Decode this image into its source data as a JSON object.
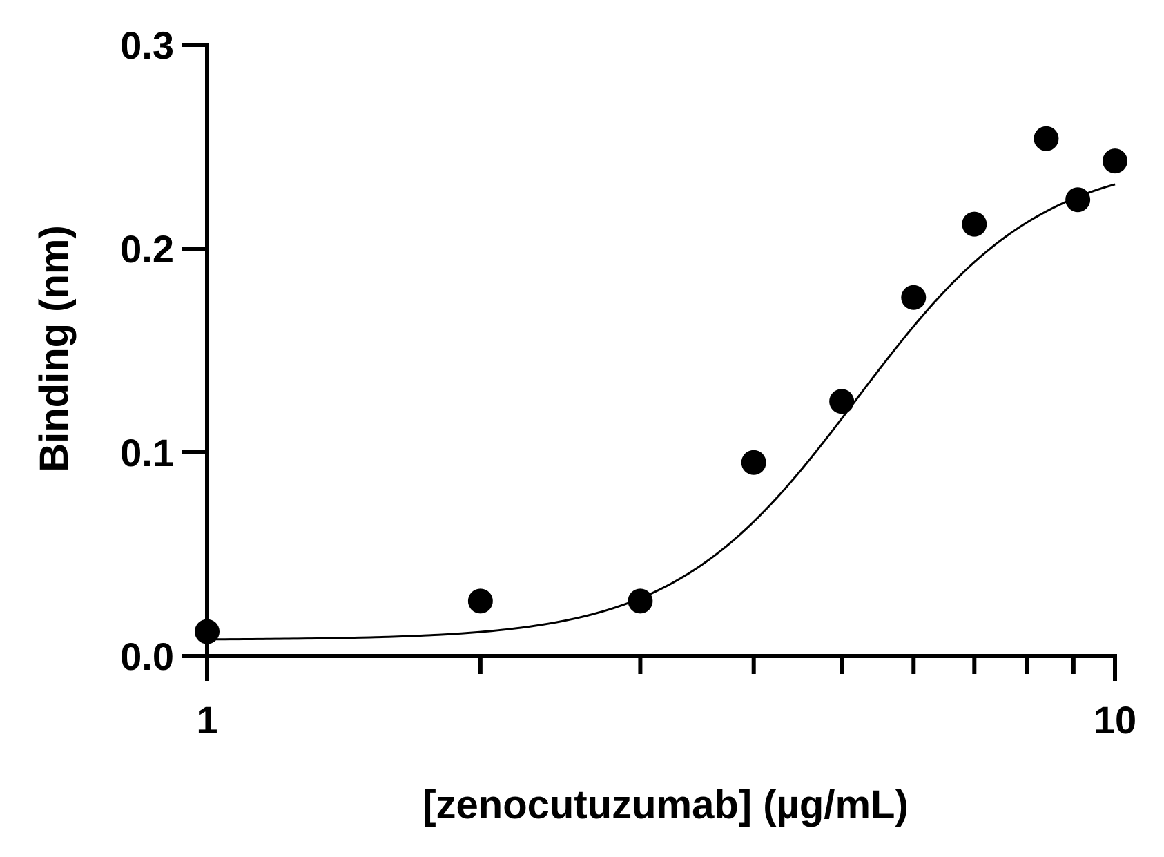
{
  "chart_data": {
    "type": "scatter",
    "xlabel": "[zenocutuzumab] (µg/mL)",
    "ylabel": "Binding (nm)",
    "x_scale": "log",
    "xlim": [
      1,
      10
    ],
    "ylim": [
      0,
      0.3
    ],
    "x_ticks": [
      1,
      2,
      3,
      4,
      5,
      6,
      7,
      8,
      9,
      10
    ],
    "x_tick_labels": [
      {
        "value": 1,
        "label": "1"
      },
      {
        "value": 10,
        "label": "10"
      }
    ],
    "y_ticks": [
      {
        "value": 0.0,
        "label": "0.0"
      },
      {
        "value": 0.1,
        "label": "0.1"
      },
      {
        "value": 0.2,
        "label": "0.2"
      },
      {
        "value": 0.3,
        "label": "0.3"
      }
    ],
    "grid": false,
    "legend": "none",
    "series": [
      {
        "points": [
          {
            "x": 1.0,
            "y": 0.012
          },
          {
            "x": 2.0,
            "y": 0.027
          },
          {
            "x": 3.0,
            "y": 0.027
          },
          {
            "x": 4.0,
            "y": 0.095
          },
          {
            "x": 5.0,
            "y": 0.125
          },
          {
            "x": 6.0,
            "y": 0.176
          },
          {
            "x": 7.0,
            "y": 0.212
          },
          {
            "x": 8.4,
            "y": 0.254
          },
          {
            "x": 9.1,
            "y": 0.224
          },
          {
            "x": 10.0,
            "y": 0.243
          }
        ],
        "fit": {
          "model": "sigmoidal dose-response",
          "bottom": 0.008,
          "top": 0.245,
          "ec50": 5.2,
          "hill": 4.3
        },
        "color": "#000000"
      }
    ]
  }
}
